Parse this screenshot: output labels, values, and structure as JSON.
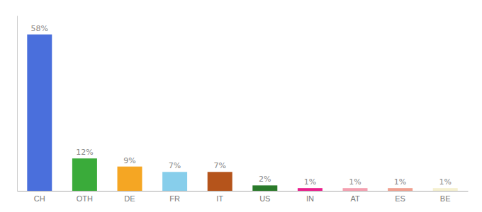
{
  "chart_data": {
    "type": "bar",
    "categories": [
      "CH",
      "OTH",
      "DE",
      "FR",
      "IT",
      "US",
      "IN",
      "AT",
      "ES",
      "BE"
    ],
    "values": [
      58,
      12,
      9,
      7,
      7,
      2,
      1,
      1,
      1,
      1
    ],
    "value_labels": [
      "58%",
      "12%",
      "9%",
      "7%",
      "7%",
      "2%",
      "1%",
      "1%",
      "1%",
      "1%"
    ],
    "colors": [
      "#4a6fdc",
      "#3aab3a",
      "#f5a623",
      "#87ceeb",
      "#b5541b",
      "#2a7a2a",
      "#e91e8c",
      "#f4a0b0",
      "#f0a090",
      "#f5f0d0"
    ],
    "ylim": [
      0,
      65
    ],
    "data_labels": true,
    "tick_labels": "x",
    "grid": false
  }
}
